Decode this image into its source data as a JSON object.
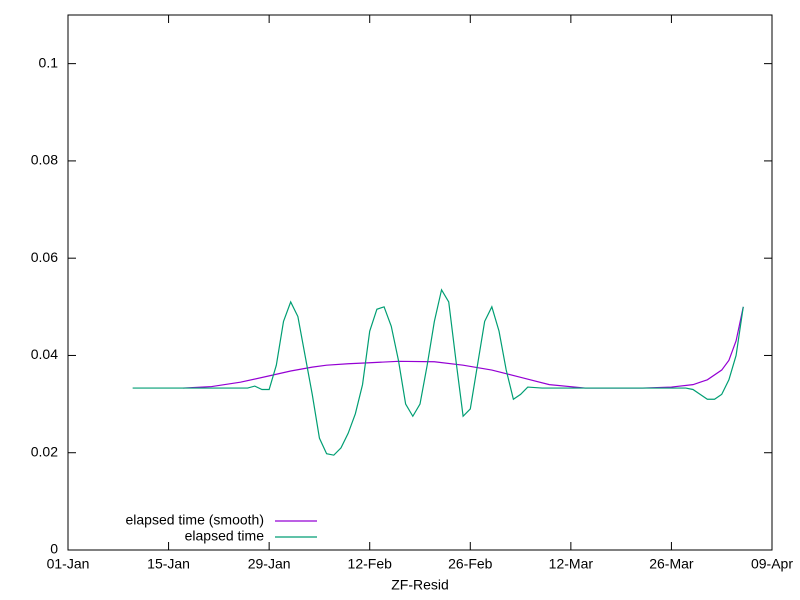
{
  "chart_data": {
    "type": "line",
    "xlabel": "ZF-Resid",
    "xlim": [
      0,
      98
    ],
    "ylim": [
      0,
      0.11
    ],
    "xticks": [
      {
        "value": 0,
        "label": "01-Jan"
      },
      {
        "value": 14,
        "label": "15-Jan"
      },
      {
        "value": 28,
        "label": "29-Jan"
      },
      {
        "value": 42,
        "label": "12-Feb"
      },
      {
        "value": 56,
        "label": "26-Feb"
      },
      {
        "value": 70,
        "label": "12-Mar"
      },
      {
        "value": 84,
        "label": "26-Mar"
      },
      {
        "value": 98,
        "label": "09-Apr"
      }
    ],
    "yticks": [
      0,
      0.02,
      0.04,
      0.06,
      0.08,
      0.1
    ],
    "legend": "bottom-left",
    "series": [
      {
        "name": "elapsed time (smooth)",
        "color": "#9400d3",
        "x": [
          16,
          20,
          24,
          28,
          31,
          34,
          36,
          39,
          42,
          46,
          51,
          55,
          59,
          63,
          67,
          72,
          80,
          84,
          87,
          89,
          91,
          92,
          93,
          94
        ],
        "values": [
          0.0333,
          0.0336,
          0.0345,
          0.0358,
          0.0368,
          0.0376,
          0.038,
          0.0383,
          0.0385,
          0.0388,
          0.0387,
          0.038,
          0.037,
          0.0355,
          0.034,
          0.0333,
          0.0333,
          0.0335,
          0.034,
          0.035,
          0.037,
          0.039,
          0.043,
          0.05
        ]
      },
      {
        "name": "elapsed time",
        "color": "#009e73",
        "x": [
          9,
          15,
          20,
          25,
          26,
          27,
          28,
          29,
          30,
          31,
          32,
          33,
          34,
          35,
          36,
          37,
          38,
          39,
          40,
          41,
          42,
          43,
          44,
          45,
          46,
          47,
          48,
          49,
          50,
          51,
          52,
          53,
          54,
          55,
          56,
          57,
          58,
          59,
          60,
          61,
          62,
          63,
          64,
          66,
          75,
          86,
          87,
          88,
          89,
          90,
          91,
          92,
          93,
          94
        ],
        "values": [
          0.0333,
          0.0333,
          0.0333,
          0.0333,
          0.0337,
          0.033,
          0.033,
          0.038,
          0.047,
          0.051,
          0.048,
          0.04,
          0.032,
          0.023,
          0.0198,
          0.0195,
          0.021,
          0.024,
          0.028,
          0.034,
          0.045,
          0.0495,
          0.05,
          0.046,
          0.039,
          0.03,
          0.0275,
          0.03,
          0.038,
          0.047,
          0.0535,
          0.051,
          0.039,
          0.0275,
          0.029,
          0.038,
          0.047,
          0.05,
          0.045,
          0.037,
          0.031,
          0.032,
          0.0335,
          0.0333,
          0.0333,
          0.0333,
          0.033,
          0.032,
          0.031,
          0.031,
          0.032,
          0.035,
          0.04,
          0.05
        ]
      }
    ]
  }
}
